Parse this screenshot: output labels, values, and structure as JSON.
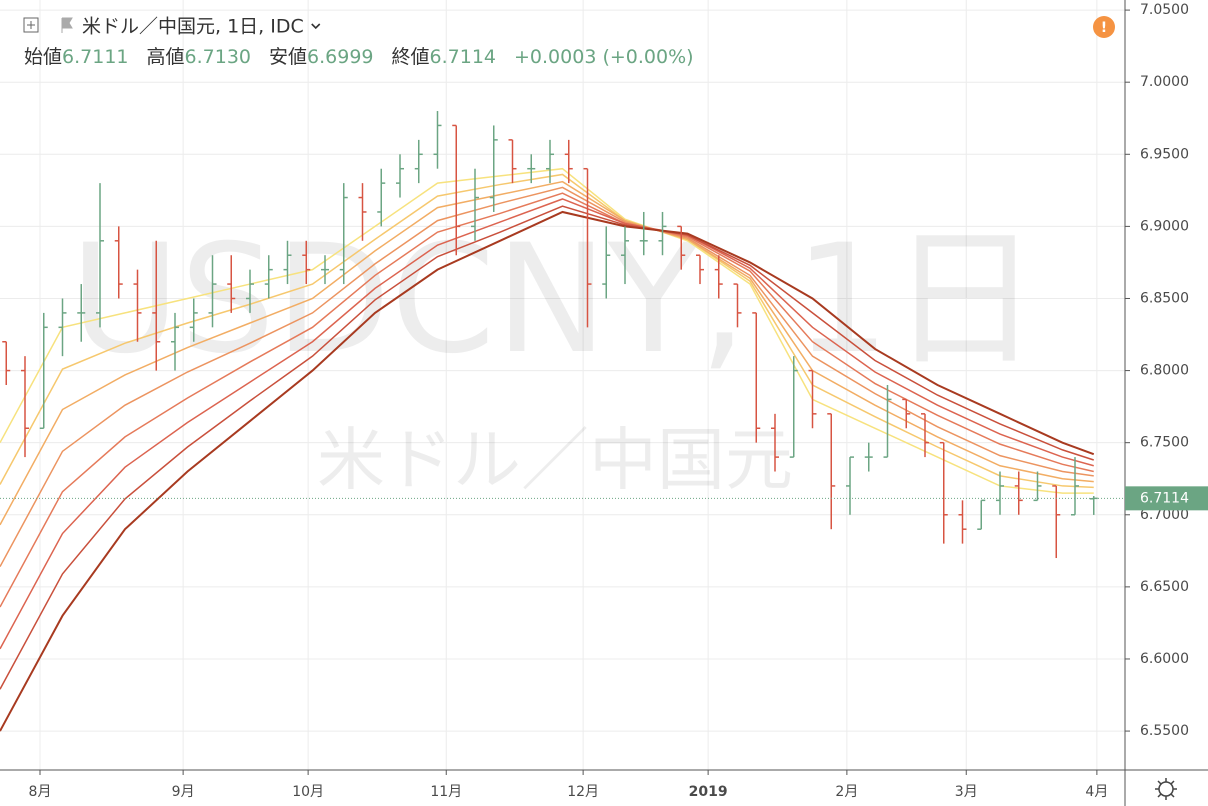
{
  "chart_data": {
    "type": "ohlc",
    "title": "米ドル／中国元, 1日, IDC",
    "watermark": "USDCNY, 1日",
    "watermark_sub": "米ドル／中国元",
    "header": [
      {
        "label": "始値",
        "value": "6.7111"
      },
      {
        "label": "高値",
        "value": "6.7130"
      },
      {
        "label": "安値",
        "value": "6.6999"
      },
      {
        "label": "終値",
        "value": "6.7114"
      }
    ],
    "change": "+0.0003 (+0.00%)",
    "up_color": "#6ba583",
    "down_color": "#d75442",
    "x": [
      1,
      4,
      7,
      10,
      13,
      16,
      19,
      22,
      25,
      28,
      31,
      34,
      37,
      40,
      43,
      46,
      49,
      52,
      55,
      58,
      61,
      64,
      67,
      70,
      73,
      76,
      79,
      82,
      85,
      88,
      91,
      94,
      97,
      100,
      103,
      106,
      109,
      112,
      115,
      118,
      121,
      124,
      127,
      130,
      133,
      136,
      139,
      142,
      145,
      148,
      151,
      154,
      157,
      160,
      163,
      166,
      169,
      172,
      175
    ],
    "open": [
      6.82,
      6.8,
      6.76,
      6.83,
      6.84,
      6.84,
      6.89,
      6.86,
      6.84,
      6.82,
      6.83,
      6.84,
      6.86,
      6.85,
      6.86,
      6.87,
      6.88,
      6.87,
      6.87,
      6.92,
      6.91,
      6.93,
      6.94,
      6.95,
      6.97,
      6.9,
      6.92,
      6.96,
      6.94,
      6.94,
      6.95,
      6.94,
      6.86,
      6.88,
      6.89,
      6.89,
      6.9,
      6.88,
      6.87,
      6.86,
      6.84,
      6.76,
      6.74,
      6.8,
      6.77,
      6.72,
      6.74,
      6.74,
      6.78,
      6.77,
      6.75,
      6.7,
      6.69,
      6.71,
      6.72,
      6.71,
      6.72,
      6.7,
      6.7111
    ],
    "high": [
      6.82,
      6.81,
      6.84,
      6.85,
      6.86,
      6.93,
      6.9,
      6.87,
      6.89,
      6.84,
      6.85,
      6.88,
      6.88,
      6.87,
      6.88,
      6.89,
      6.89,
      6.88,
      6.93,
      6.93,
      6.94,
      6.95,
      6.96,
      6.98,
      6.97,
      6.94,
      6.97,
      6.96,
      6.95,
      6.96,
      6.96,
      6.94,
      6.9,
      6.9,
      6.91,
      6.91,
      6.9,
      6.88,
      6.88,
      6.86,
      6.84,
      6.77,
      6.81,
      6.8,
      6.77,
      6.74,
      6.75,
      6.79,
      6.78,
      6.77,
      6.75,
      6.71,
      6.71,
      6.73,
      6.73,
      6.73,
      6.72,
      6.74,
      6.713
    ],
    "low": [
      6.79,
      6.74,
      6.76,
      6.81,
      6.82,
      6.83,
      6.85,
      6.82,
      6.8,
      6.8,
      6.82,
      6.83,
      6.84,
      6.84,
      6.85,
      6.86,
      6.86,
      6.86,
      6.86,
      6.89,
      6.9,
      6.92,
      6.93,
      6.94,
      6.88,
      6.89,
      6.91,
      6.93,
      6.93,
      6.93,
      6.93,
      6.83,
      6.85,
      6.86,
      6.88,
      6.88,
      6.87,
      6.86,
      6.85,
      6.83,
      6.75,
      6.73,
      6.74,
      6.76,
      6.69,
      6.7,
      6.73,
      6.74,
      6.76,
      6.74,
      6.68,
      6.68,
      6.69,
      6.7,
      6.7,
      6.71,
      6.67,
      6.7,
      6.6999
    ],
    "close": [
      6.8,
      6.76,
      6.83,
      6.84,
      6.84,
      6.89,
      6.86,
      6.84,
      6.82,
      6.83,
      6.84,
      6.86,
      6.85,
      6.86,
      6.87,
      6.88,
      6.87,
      6.87,
      6.92,
      6.91,
      6.93,
      6.94,
      6.95,
      6.97,
      6.9,
      6.92,
      6.96,
      6.94,
      6.94,
      6.95,
      6.94,
      6.86,
      6.88,
      6.89,
      6.89,
      6.9,
      6.88,
      6.87,
      6.86,
      6.84,
      6.76,
      6.74,
      6.8,
      6.77,
      6.72,
      6.74,
      6.74,
      6.78,
      6.77,
      6.75,
      6.7,
      6.69,
      6.71,
      6.72,
      6.71,
      6.72,
      6.7,
      6.72,
      6.7114
    ],
    "ma": {
      "x": [
        0,
        10,
        20,
        30,
        40,
        50,
        60,
        70,
        80,
        90,
        100,
        110,
        120,
        130,
        140,
        150,
        160,
        170,
        175
      ],
      "series": [
        {
          "color": "#f7e27e",
          "values": [
            6.75,
            6.83,
            6.84,
            6.85,
            6.86,
            6.87,
            6.9,
            6.93,
            6.935,
            6.94,
            6.905,
            6.89,
            6.86,
            6.78,
            6.76,
            6.74,
            6.72,
            6.715,
            6.715
          ]
        },
        {
          "color": "#f6c86e",
          "values": [
            6.721,
            6.801,
            6.819,
            6.833,
            6.846,
            6.86,
            6.891,
            6.921,
            6.929,
            6.936,
            6.904,
            6.891,
            6.862,
            6.79,
            6.768,
            6.747,
            6.727,
            6.72,
            6.719
          ]
        },
        {
          "color": "#f2ad64",
          "values": [
            6.693,
            6.773,
            6.797,
            6.816,
            6.833,
            6.85,
            6.883,
            6.913,
            6.922,
            6.931,
            6.904,
            6.891,
            6.864,
            6.8,
            6.776,
            6.754,
            6.734,
            6.725,
            6.723
          ]
        },
        {
          "color": "#ec9460",
          "values": [
            6.664,
            6.744,
            6.776,
            6.799,
            6.819,
            6.84,
            6.874,
            6.904,
            6.916,
            6.927,
            6.903,
            6.892,
            6.866,
            6.81,
            6.784,
            6.761,
            6.741,
            6.73,
            6.727
          ]
        },
        {
          "color": "#e57a5a",
          "values": [
            6.636,
            6.716,
            6.754,
            6.781,
            6.806,
            6.83,
            6.866,
            6.896,
            6.909,
            6.923,
            6.902,
            6.893,
            6.869,
            6.82,
            6.791,
            6.769,
            6.749,
            6.735,
            6.73
          ]
        },
        {
          "color": "#dc6450",
          "values": [
            6.607,
            6.687,
            6.733,
            6.764,
            6.792,
            6.82,
            6.857,
            6.887,
            6.903,
            6.919,
            6.902,
            6.894,
            6.871,
            6.83,
            6.799,
            6.776,
            6.756,
            6.74,
            6.734
          ]
        },
        {
          "color": "#c9503c",
          "values": [
            6.579,
            6.659,
            6.711,
            6.747,
            6.779,
            6.81,
            6.849,
            6.879,
            6.896,
            6.914,
            6.901,
            6.894,
            6.873,
            6.84,
            6.807,
            6.783,
            6.763,
            6.745,
            6.738
          ]
        },
        {
          "color": "#a83a20",
          "values": [
            6.55,
            6.63,
            6.69,
            6.73,
            6.765,
            6.8,
            6.84,
            6.87,
            6.89,
            6.91,
            6.9,
            6.895,
            6.875,
            6.85,
            6.815,
            6.79,
            6.77,
            6.75,
            6.742
          ]
        }
      ]
    },
    "last_price": 6.7114,
    "last_price_color": "#6ba583",
    "xlim": [
      0,
      180
    ],
    "ylim": [
      6.523,
      7.057
    ],
    "xticks": [
      {
        "value": 6.4,
        "label": "8月"
      },
      {
        "value": 29.3,
        "label": "9月"
      },
      {
        "value": 49.3,
        "label": "10月"
      },
      {
        "value": 71.4,
        "label": "11月"
      },
      {
        "value": 93.3,
        "label": "12月"
      },
      {
        "value": 113.3,
        "label": "2019"
      },
      {
        "value": 135.5,
        "label": "2月"
      },
      {
        "value": 154.6,
        "label": "3月"
      },
      {
        "value": 175.5,
        "label": "4月"
      }
    ],
    "yticks": [
      {
        "value": 6.55,
        "label": "6.5500"
      },
      {
        "value": 6.6,
        "label": "6.6000"
      },
      {
        "value": 6.65,
        "label": "6.6500"
      },
      {
        "value": 6.7,
        "label": "6.7000"
      },
      {
        "value": 6.75,
        "label": "6.7500"
      },
      {
        "value": 6.8,
        "label": "6.8000"
      },
      {
        "value": 6.85,
        "label": "6.8500"
      },
      {
        "value": 6.9,
        "label": "6.9000"
      },
      {
        "value": 6.95,
        "label": "6.9500"
      },
      {
        "value": 7.0,
        "label": "7.0000"
      },
      {
        "value": 7.05,
        "label": "7.0500"
      }
    ],
    "grid": true
  }
}
